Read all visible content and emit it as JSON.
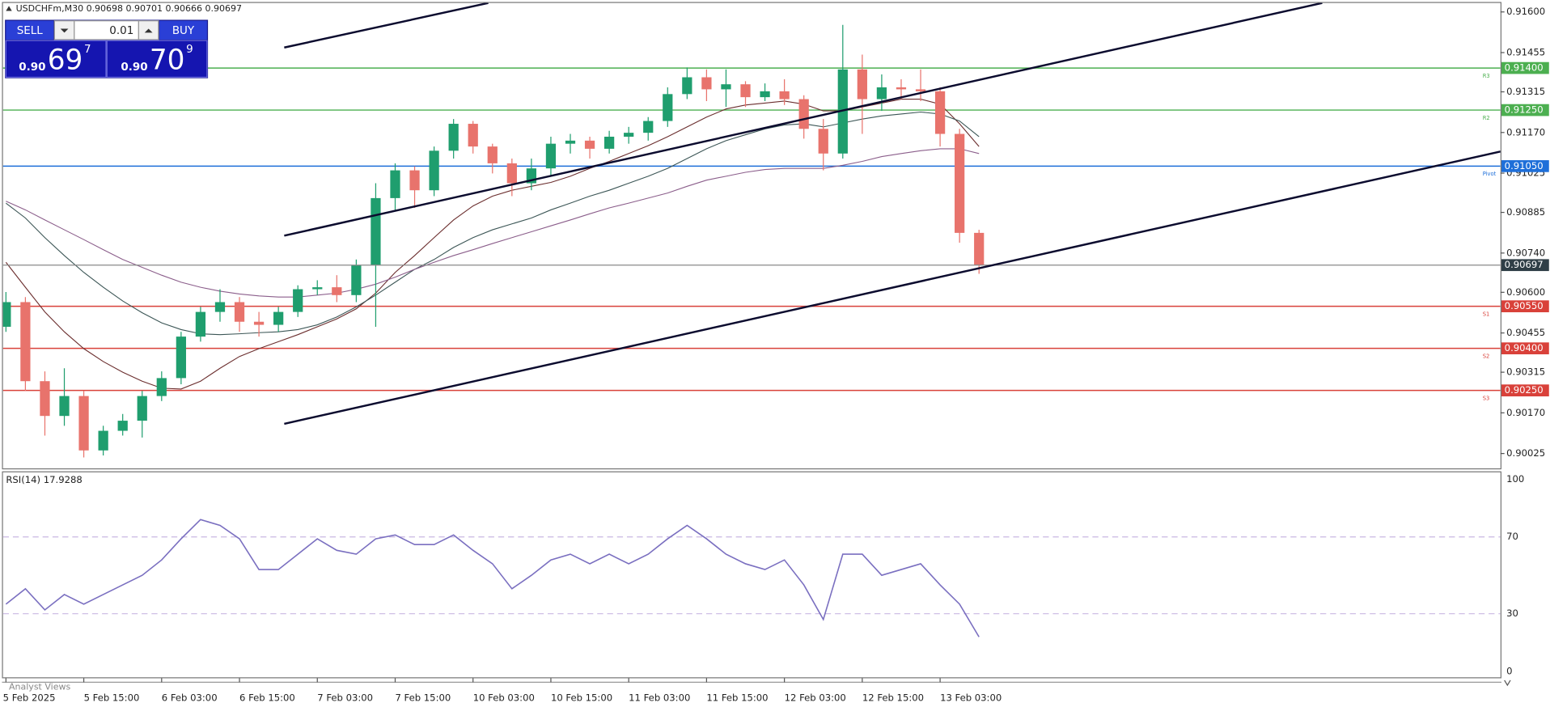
{
  "chart_data": [
    {
      "type": "candlestick",
      "title": "USDCHFm,M30  0.90698 0.90701 0.90666 0.90697",
      "categories": [
        "5 Feb 2025",
        null,
        null,
        null,
        "5 Feb 15:00",
        null,
        null,
        null,
        "6 Feb 03:00",
        null,
        null,
        null,
        "6 Feb 15:00",
        null,
        null,
        null,
        "7 Feb 03:00",
        null,
        null,
        null,
        "7 Feb 15:00",
        null,
        null,
        null,
        "10 Feb 03:00",
        null,
        null,
        null,
        "10 Feb 15:00",
        null,
        null,
        null,
        "11 Feb 03:00",
        null,
        null,
        null,
        "11 Feb 15:00",
        null,
        null,
        null,
        "12 Feb 03:00",
        null,
        null,
        null,
        "12 Feb 15:00",
        null,
        null,
        null,
        "13 Feb 03:00",
        null,
        null
      ],
      "open": [
        0.90477,
        0.90565,
        0.90283,
        0.90159,
        0.9023,
        0.90036,
        0.90106,
        0.90142,
        0.9023,
        0.90294,
        0.90442,
        0.9053,
        0.90565,
        0.90495,
        0.90484,
        0.9053,
        0.90611,
        0.90618,
        0.9059,
        0.90697,
        0.90936,
        0.91035,
        0.90964,
        0.91105,
        0.91201,
        0.9112,
        0.9106,
        0.90989,
        0.91042,
        0.9113,
        0.91141,
        0.91112,
        0.91155,
        0.91169,
        0.91211,
        0.91307,
        0.91367,
        0.91324,
        0.91342,
        0.91296,
        0.91317,
        0.91289,
        0.91183,
        0.91095,
        0.91395,
        0.91289,
        0.91331,
        0.91324,
        0.91317,
        0.91165,
        0.90812
      ],
      "high": [
        0.90601,
        0.90583,
        0.90318,
        0.90329,
        0.90248,
        0.90124,
        0.90166,
        0.90248,
        0.90318,
        0.90459,
        0.90548,
        0.90611,
        0.90583,
        0.9053,
        0.90548,
        0.90625,
        0.90643,
        0.90661,
        0.90717,
        0.90989,
        0.9106,
        0.91049,
        0.9112,
        0.91218,
        0.91211,
        0.9113,
        0.91077,
        0.91077,
        0.91155,
        0.91165,
        0.91155,
        0.91176,
        0.9119,
        0.91225,
        0.91331,
        0.91402,
        0.91395,
        0.91395,
        0.91353,
        0.91345,
        0.9136,
        0.91303,
        0.91218,
        0.91554,
        0.91448,
        0.91377,
        0.9136,
        0.91395,
        0.91331,
        0.91183,
        0.90823
      ],
      "low": [
        0.90459,
        0.90248,
        0.90089,
        0.90124,
        0.90011,
        0.90018,
        0.90089,
        0.90082,
        0.90212,
        0.90272,
        0.90424,
        0.90495,
        0.90459,
        0.90442,
        0.90459,
        0.90512,
        0.9059,
        0.90565,
        0.90565,
        0.90477,
        0.90894,
        0.90901,
        0.90943,
        0.91077,
        0.91095,
        0.91024,
        0.90943,
        0.90964,
        0.91014,
        0.91095,
        0.91077,
        0.91095,
        0.9113,
        0.91141,
        0.9119,
        0.91289,
        0.91282,
        0.91261,
        0.91261,
        0.91282,
        0.91268,
        0.91148,
        0.91035,
        0.91077,
        0.91165,
        0.91247,
        0.91289,
        0.91282,
        0.9112,
        0.90777,
        0.90666
      ],
      "close": [
        0.90565,
        0.90283,
        0.90159,
        0.9023,
        0.90036,
        0.90106,
        0.90142,
        0.9023,
        0.90294,
        0.90442,
        0.9053,
        0.90565,
        0.90495,
        0.90484,
        0.9053,
        0.90611,
        0.90618,
        0.9059,
        0.90697,
        0.90936,
        0.91035,
        0.90964,
        0.91105,
        0.91201,
        0.9112,
        0.9106,
        0.90989,
        0.91042,
        0.9113,
        0.91141,
        0.91112,
        0.91155,
        0.91169,
        0.91211,
        0.91307,
        0.91367,
        0.91324,
        0.91342,
        0.91296,
        0.91317,
        0.91289,
        0.91183,
        0.91095,
        0.91395,
        0.91289,
        0.91331,
        0.91324,
        0.91317,
        0.91165,
        0.90812,
        0.90697
      ],
      "up_color": "#1f9e6e",
      "down_color": "#e8736c",
      "series": [
        {
          "color": "#6b2e2e",
          "values": [
            0.90707,
            0.90618,
            0.9053,
            0.90459,
            0.90399,
            0.90353,
            0.90315,
            0.90283,
            0.90258,
            0.90255,
            0.90283,
            0.90329,
            0.90371,
            0.90399,
            0.90424,
            0.90449,
            0.90477,
            0.90505,
            0.90541,
            0.90597,
            0.90671,
            0.90731,
            0.90795,
            0.90858,
            0.90908,
            0.90943,
            0.90964,
            0.90978,
            0.90992,
            0.91014,
            0.91042,
            0.91067,
            0.91095,
            0.91123,
            0.91155,
            0.9119,
            0.91225,
            0.91254,
            0.91268,
            0.91275,
            0.91282,
            0.91271,
            0.91247,
            0.91247,
            0.91261,
            0.91275,
            0.91289,
            0.91289,
            0.91271,
            0.91201,
            0.9112
          ]
        },
        {
          "color": "#3c5656",
          "values": [
            0.90918,
            0.90865,
            0.90795,
            0.90731,
            0.90671,
            0.90618,
            0.90569,
            0.90527,
            0.90491,
            0.90467,
            0.90452,
            0.90449,
            0.90452,
            0.90456,
            0.90459,
            0.90467,
            0.90484,
            0.90512,
            0.90548,
            0.9059,
            0.90636,
            0.90682,
            0.90717,
            0.9076,
            0.90795,
            0.90823,
            0.90844,
            0.90865,
            0.90894,
            0.90918,
            0.90943,
            0.90964,
            0.90989,
            0.91014,
            0.91042,
            0.91077,
            0.91112,
            0.91141,
            0.91162,
            0.91183,
            0.91197,
            0.91201,
            0.9119,
            0.91204,
            0.91218,
            0.91229,
            0.91236,
            0.91243,
            0.91236,
            0.91211,
            0.91155
          ]
        },
        {
          "color": "#8b5e8b",
          "values": [
            0.90925,
            0.90894,
            0.90858,
            0.90823,
            0.90788,
            0.90752,
            0.90717,
            0.90689,
            0.90661,
            0.90636,
            0.90618,
            0.90604,
            0.90594,
            0.90587,
            0.90583,
            0.90583,
            0.9059,
            0.90597,
            0.90611,
            0.90629,
            0.90654,
            0.90682,
            0.90707,
            0.90731,
            0.90752,
            0.90774,
            0.90795,
            0.90816,
            0.90837,
            0.90858,
            0.9088,
            0.90901,
            0.90918,
            0.90936,
            0.90954,
            0.90978,
            0.91,
            0.91014,
            0.91028,
            0.91038,
            0.91042,
            0.91042,
            0.91042,
            0.91053,
            0.91067,
            0.91084,
            0.91095,
            0.91105,
            0.91112,
            0.91112,
            0.91095
          ]
        }
      ],
      "levels": [
        {
          "name": "R3",
          "value": 0.914,
          "label": "0.91400",
          "color": "#4caf50"
        },
        {
          "name": "R2",
          "value": 0.9125,
          "label": "0.91250",
          "color": "#4caf50"
        },
        {
          "name": "Pivot",
          "value": 0.9105,
          "label": "0.91050",
          "color": "#1e6fd9"
        },
        {
          "name": "S1",
          "value": 0.9055,
          "label": "0.90550",
          "color": "#d9413a"
        },
        {
          "name": "S2",
          "value": 0.904,
          "label": "0.90400",
          "color": "#d9413a"
        },
        {
          "name": "S3",
          "value": 0.9025,
          "label": "0.90250",
          "color": "#d9413a"
        }
      ],
      "current_price": {
        "value": 0.90697,
        "label": "0.90697",
        "color": "#8a8a8a",
        "box_color": "#2f3e46"
      },
      "ylim": [
        0.89972,
        0.91632
      ],
      "yticks": [
        {
          "value": 0.916,
          "label": "0.91600"
        },
        0.91455,
        0.91315,
        {
          "value": 0.9117,
          "label": "0.91170"
        },
        0.91025,
        0.90885,
        {
          "value": 0.9074,
          "label": "0.90740"
        },
        {
          "value": 0.906,
          "label": "0.90600"
        },
        0.90455,
        0.90315,
        {
          "value": 0.9017,
          "label": "0.90170"
        },
        0.90025
      ]
    },
    {
      "type": "line",
      "title": "RSI(14) 17.9288",
      "color": "#7a6fc0",
      "values": [
        35,
        43,
        32,
        40,
        35,
        40,
        45,
        50,
        58,
        69,
        79,
        76,
        69,
        53,
        53,
        61,
        69,
        63,
        61,
        69,
        71,
        66,
        66,
        71,
        63,
        56,
        43,
        50,
        58,
        61,
        56,
        61,
        56,
        61,
        69,
        76,
        69,
        61,
        56,
        53,
        58,
        45,
        27,
        61,
        61,
        50,
        53,
        56,
        45,
        35,
        17.9288
      ],
      "ylim": [
        0,
        100
      ],
      "yticks": [
        100,
        70,
        30,
        0
      ]
    }
  ],
  "trade_panel": {
    "sell": "SELL",
    "lot": "0.01",
    "buy": "BUY",
    "bid": [
      "0.90",
      "69",
      "7"
    ],
    "ask": [
      "0.90",
      "70",
      "9"
    ]
  },
  "footer": "Analyst Views"
}
